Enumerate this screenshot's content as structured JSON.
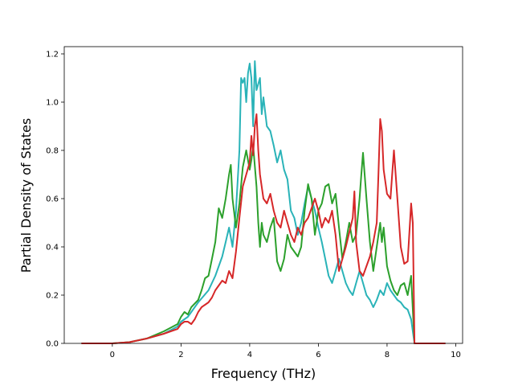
{
  "chart_data": {
    "type": "line",
    "title": "",
    "xlabel": "Frequency (THz)",
    "ylabel": "Partial Density of States",
    "xlim": [
      -1.4,
      10.2
    ],
    "ylim": [
      0.0,
      1.23
    ],
    "xticks": [
      0,
      2,
      4,
      6,
      8,
      10
    ],
    "yticks": [
      0.0,
      0.2,
      0.4,
      0.6,
      0.8,
      1.0,
      1.2
    ],
    "xtick_labels": [
      "0",
      "2",
      "4",
      "6",
      "8",
      "10"
    ],
    "ytick_labels": [
      "0.0",
      "0.2",
      "0.4",
      "0.6",
      "0.8",
      "1.0",
      "1.2"
    ],
    "grid": false,
    "legend": "none",
    "series": [
      {
        "color": "#2ab3b8",
        "points": [
          [
            -0.9,
            0.0
          ],
          [
            0.0,
            0.0
          ],
          [
            0.5,
            0.005
          ],
          [
            1.0,
            0.02
          ],
          [
            1.5,
            0.04
          ],
          [
            1.9,
            0.07
          ],
          [
            2.0,
            0.09
          ],
          [
            2.2,
            0.11
          ],
          [
            2.5,
            0.17
          ],
          [
            2.8,
            0.22
          ],
          [
            3.0,
            0.28
          ],
          [
            3.2,
            0.36
          ],
          [
            3.3,
            0.42
          ],
          [
            3.4,
            0.48
          ],
          [
            3.5,
            0.4
          ],
          [
            3.6,
            0.55
          ],
          [
            3.7,
            0.8
          ],
          [
            3.75,
            1.1
          ],
          [
            3.8,
            1.08
          ],
          [
            3.85,
            1.1
          ],
          [
            3.9,
            1.0
          ],
          [
            3.95,
            1.12
          ],
          [
            4.0,
            1.16
          ],
          [
            4.05,
            1.1
          ],
          [
            4.1,
            0.9
          ],
          [
            4.15,
            1.17
          ],
          [
            4.2,
            1.05
          ],
          [
            4.3,
            1.1
          ],
          [
            4.35,
            0.95
          ],
          [
            4.4,
            1.02
          ],
          [
            4.5,
            0.9
          ],
          [
            4.6,
            0.88
          ],
          [
            4.7,
            0.82
          ],
          [
            4.8,
            0.75
          ],
          [
            4.9,
            0.8
          ],
          [
            5.0,
            0.72
          ],
          [
            5.1,
            0.68
          ],
          [
            5.2,
            0.55
          ],
          [
            5.3,
            0.52
          ],
          [
            5.4,
            0.45
          ],
          [
            5.5,
            0.5
          ],
          [
            5.6,
            0.58
          ],
          [
            5.7,
            0.65
          ],
          [
            5.8,
            0.6
          ],
          [
            5.9,
            0.55
          ],
          [
            6.0,
            0.48
          ],
          [
            6.1,
            0.42
          ],
          [
            6.2,
            0.35
          ],
          [
            6.3,
            0.28
          ],
          [
            6.4,
            0.25
          ],
          [
            6.5,
            0.3
          ],
          [
            6.6,
            0.35
          ],
          [
            6.7,
            0.3
          ],
          [
            6.8,
            0.25
          ],
          [
            6.9,
            0.22
          ],
          [
            7.0,
            0.2
          ],
          [
            7.1,
            0.25
          ],
          [
            7.2,
            0.3
          ],
          [
            7.3,
            0.25
          ],
          [
            7.4,
            0.2
          ],
          [
            7.5,
            0.18
          ],
          [
            7.6,
            0.15
          ],
          [
            7.7,
            0.18
          ],
          [
            7.8,
            0.22
          ],
          [
            7.9,
            0.2
          ],
          [
            8.0,
            0.25
          ],
          [
            8.1,
            0.22
          ],
          [
            8.2,
            0.2
          ],
          [
            8.3,
            0.18
          ],
          [
            8.4,
            0.17
          ],
          [
            8.5,
            0.15
          ],
          [
            8.6,
            0.14
          ],
          [
            8.7,
            0.1
          ],
          [
            8.8,
            0.0
          ],
          [
            9.7,
            0.0
          ]
        ]
      },
      {
        "color": "#2ca02c",
        "points": [
          [
            -0.9,
            0.0
          ],
          [
            0.0,
            0.0
          ],
          [
            0.5,
            0.005
          ],
          [
            1.0,
            0.02
          ],
          [
            1.5,
            0.05
          ],
          [
            1.9,
            0.08
          ],
          [
            2.0,
            0.11
          ],
          [
            2.1,
            0.13
          ],
          [
            2.2,
            0.12
          ],
          [
            2.3,
            0.15
          ],
          [
            2.5,
            0.18
          ],
          [
            2.6,
            0.22
          ],
          [
            2.7,
            0.27
          ],
          [
            2.8,
            0.28
          ],
          [
            2.9,
            0.35
          ],
          [
            3.0,
            0.42
          ],
          [
            3.1,
            0.56
          ],
          [
            3.2,
            0.52
          ],
          [
            3.3,
            0.6
          ],
          [
            3.4,
            0.7
          ],
          [
            3.45,
            0.74
          ],
          [
            3.5,
            0.6
          ],
          [
            3.6,
            0.48
          ],
          [
            3.7,
            0.58
          ],
          [
            3.8,
            0.73
          ],
          [
            3.9,
            0.8
          ],
          [
            4.0,
            0.72
          ],
          [
            4.05,
            0.76
          ],
          [
            4.1,
            0.82
          ],
          [
            4.2,
            0.65
          ],
          [
            4.25,
            0.5
          ],
          [
            4.3,
            0.4
          ],
          [
            4.35,
            0.5
          ],
          [
            4.4,
            0.45
          ],
          [
            4.5,
            0.42
          ],
          [
            4.6,
            0.48
          ],
          [
            4.7,
            0.52
          ],
          [
            4.8,
            0.34
          ],
          [
            4.9,
            0.3
          ],
          [
            5.0,
            0.35
          ],
          [
            5.1,
            0.45
          ],
          [
            5.2,
            0.4
          ],
          [
            5.3,
            0.38
          ],
          [
            5.4,
            0.36
          ],
          [
            5.5,
            0.4
          ],
          [
            5.6,
            0.55
          ],
          [
            5.7,
            0.66
          ],
          [
            5.8,
            0.6
          ],
          [
            5.9,
            0.45
          ],
          [
            6.0,
            0.55
          ],
          [
            6.1,
            0.58
          ],
          [
            6.2,
            0.65
          ],
          [
            6.3,
            0.66
          ],
          [
            6.4,
            0.58
          ],
          [
            6.5,
            0.62
          ],
          [
            6.6,
            0.48
          ],
          [
            6.7,
            0.35
          ],
          [
            6.8,
            0.42
          ],
          [
            6.9,
            0.5
          ],
          [
            7.0,
            0.42
          ],
          [
            7.1,
            0.45
          ],
          [
            7.2,
            0.6
          ],
          [
            7.25,
            0.7
          ],
          [
            7.3,
            0.79
          ],
          [
            7.4,
            0.6
          ],
          [
            7.5,
            0.42
          ],
          [
            7.6,
            0.3
          ],
          [
            7.7,
            0.4
          ],
          [
            7.8,
            0.5
          ],
          [
            7.85,
            0.42
          ],
          [
            7.9,
            0.48
          ],
          [
            8.0,
            0.32
          ],
          [
            8.1,
            0.26
          ],
          [
            8.2,
            0.22
          ],
          [
            8.3,
            0.2
          ],
          [
            8.4,
            0.24
          ],
          [
            8.5,
            0.25
          ],
          [
            8.6,
            0.2
          ],
          [
            8.7,
            0.28
          ],
          [
            8.8,
            0.0
          ],
          [
            9.7,
            0.0
          ]
        ]
      },
      {
        "color": "#d62728",
        "points": [
          [
            -0.9,
            0.0
          ],
          [
            0.0,
            0.0
          ],
          [
            0.5,
            0.005
          ],
          [
            1.0,
            0.02
          ],
          [
            1.5,
            0.04
          ],
          [
            1.9,
            0.06
          ],
          [
            2.0,
            0.08
          ],
          [
            2.1,
            0.09
          ],
          [
            2.2,
            0.09
          ],
          [
            2.3,
            0.08
          ],
          [
            2.4,
            0.1
          ],
          [
            2.5,
            0.13
          ],
          [
            2.6,
            0.15
          ],
          [
            2.7,
            0.16
          ],
          [
            2.8,
            0.17
          ],
          [
            2.9,
            0.19
          ],
          [
            3.0,
            0.22
          ],
          [
            3.1,
            0.24
          ],
          [
            3.2,
            0.26
          ],
          [
            3.3,
            0.25
          ],
          [
            3.4,
            0.3
          ],
          [
            3.5,
            0.27
          ],
          [
            3.6,
            0.38
          ],
          [
            3.7,
            0.52
          ],
          [
            3.8,
            0.65
          ],
          [
            3.9,
            0.7
          ],
          [
            4.0,
            0.75
          ],
          [
            4.05,
            0.86
          ],
          [
            4.1,
            0.78
          ],
          [
            4.15,
            0.9
          ],
          [
            4.2,
            0.95
          ],
          [
            4.25,
            0.8
          ],
          [
            4.3,
            0.7
          ],
          [
            4.4,
            0.6
          ],
          [
            4.5,
            0.58
          ],
          [
            4.6,
            0.62
          ],
          [
            4.7,
            0.55
          ],
          [
            4.8,
            0.5
          ],
          [
            4.9,
            0.48
          ],
          [
            5.0,
            0.55
          ],
          [
            5.1,
            0.5
          ],
          [
            5.2,
            0.45
          ],
          [
            5.3,
            0.42
          ],
          [
            5.4,
            0.48
          ],
          [
            5.5,
            0.45
          ],
          [
            5.6,
            0.5
          ],
          [
            5.7,
            0.52
          ],
          [
            5.8,
            0.56
          ],
          [
            5.9,
            0.6
          ],
          [
            6.0,
            0.55
          ],
          [
            6.1,
            0.48
          ],
          [
            6.2,
            0.52
          ],
          [
            6.3,
            0.5
          ],
          [
            6.4,
            0.55
          ],
          [
            6.5,
            0.45
          ],
          [
            6.6,
            0.3
          ],
          [
            6.7,
            0.35
          ],
          [
            6.8,
            0.4
          ],
          [
            6.9,
            0.46
          ],
          [
            7.0,
            0.52
          ],
          [
            7.05,
            0.63
          ],
          [
            7.1,
            0.42
          ],
          [
            7.2,
            0.3
          ],
          [
            7.3,
            0.28
          ],
          [
            7.4,
            0.32
          ],
          [
            7.5,
            0.36
          ],
          [
            7.6,
            0.42
          ],
          [
            7.7,
            0.5
          ],
          [
            7.75,
            0.7
          ],
          [
            7.8,
            0.93
          ],
          [
            7.85,
            0.88
          ],
          [
            7.9,
            0.72
          ],
          [
            8.0,
            0.62
          ],
          [
            8.1,
            0.6
          ],
          [
            8.15,
            0.7
          ],
          [
            8.2,
            0.8
          ],
          [
            8.3,
            0.6
          ],
          [
            8.4,
            0.4
          ],
          [
            8.5,
            0.33
          ],
          [
            8.6,
            0.34
          ],
          [
            8.7,
            0.58
          ],
          [
            8.75,
            0.5
          ],
          [
            8.8,
            0.0
          ],
          [
            9.7,
            0.0
          ]
        ]
      }
    ]
  }
}
